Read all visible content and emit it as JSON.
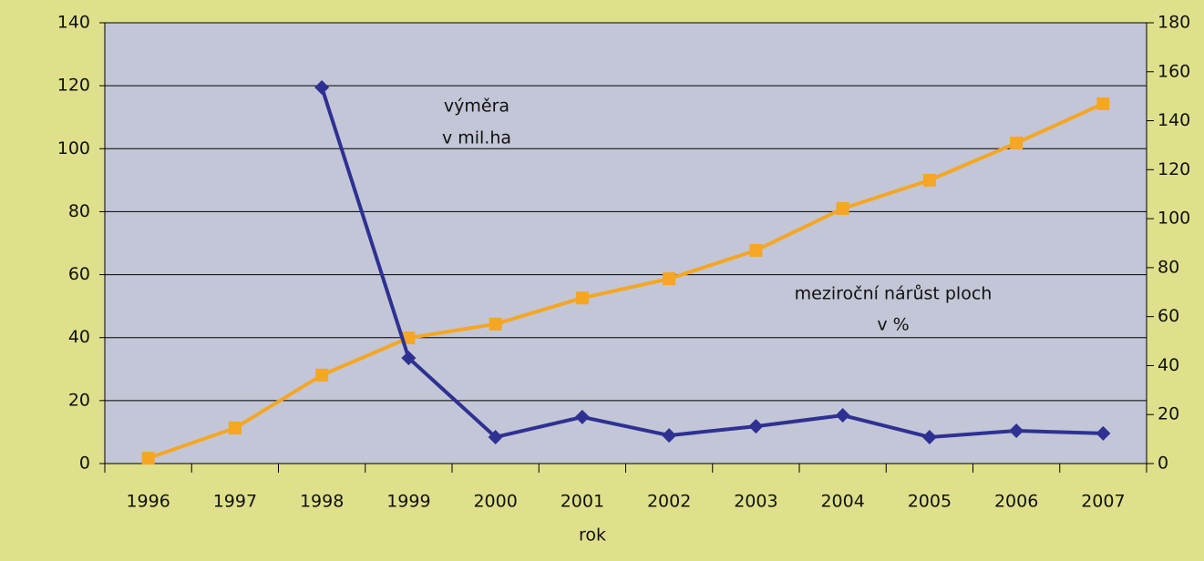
{
  "chart_data": {
    "type": "line",
    "categories": [
      "1996",
      "1997",
      "1998",
      "1999",
      "2000",
      "2001",
      "2002",
      "2003",
      "2004",
      "2005",
      "2006",
      "2007"
    ],
    "series": [
      {
        "color": "#f5a623",
        "marker": "square",
        "axis": "y",
        "values": [
          1.7,
          11.3,
          28.1,
          39.9,
          44.3,
          52.6,
          58.7,
          67.7,
          81.0,
          90.0,
          101.8,
          114.3
        ]
      },
      {
        "color": "#2e3192",
        "marker": "diamond",
        "axis": "y2",
        "values": [
          null,
          null,
          153.6,
          43.1,
          10.8,
          19.0,
          11.5,
          15.2,
          19.7,
          10.8,
          13.4,
          12.3
        ]
      }
    ],
    "ylim": [
      0,
      140
    ],
    "yticks": [
      0,
      20,
      40,
      60,
      80,
      100,
      120,
      140
    ],
    "y2lim": [
      0,
      180
    ],
    "y2ticks": [
      0,
      20,
      40,
      60,
      80,
      100,
      120,
      140,
      160,
      180
    ],
    "xlabel": "rok",
    "annotations": [
      "výměra",
      "v mil.ha",
      "meziroční nárůst ploch",
      "v %"
    ],
    "grid": true
  }
}
